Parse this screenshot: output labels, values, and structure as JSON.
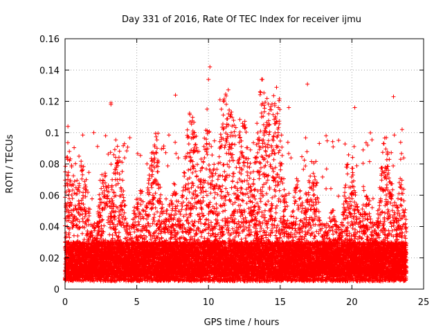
{
  "chart_data": {
    "type": "scatter",
    "title": "Day 331 of 2016, Rate Of TEC Index for receiver ijmu",
    "xlabel": "GPS time / hours",
    "ylabel": "ROTI / TECUs",
    "xlim": [
      0,
      25
    ],
    "ylim": [
      0,
      0.16
    ],
    "grid": true,
    "marker": "+",
    "x_ticks": [
      0,
      5,
      10,
      15,
      20,
      25
    ],
    "x_tick_labels": [
      "0",
      "5",
      "10",
      "15",
      "20",
      "25"
    ],
    "y_ticks": [
      0,
      0.02,
      0.04,
      0.06,
      0.08,
      0.1,
      0.12,
      0.14,
      0.16
    ],
    "y_tick_labels": [
      "0",
      "0.02",
      "0.04",
      "0.06",
      "0.08",
      "0.1",
      "0.12",
      "0.14",
      "0.16"
    ],
    "series": [
      {
        "name": "ROTI",
        "color": "#ff0000",
        "x_range": [
          0.0,
          23.8
        ],
        "sample_interval_hours": 0.0083,
        "baseline_range": [
          0.005,
          0.03
        ],
        "notable_points": [
          {
            "x": 10.1,
            "y": 0.142
          },
          {
            "x": 10.0,
            "y": 0.134
          },
          {
            "x": 16.9,
            "y": 0.131
          },
          {
            "x": 7.7,
            "y": 0.124
          },
          {
            "x": 22.9,
            "y": 0.123
          },
          {
            "x": 10.8,
            "y": 0.121
          },
          {
            "x": 3.2,
            "y": 0.119
          },
          {
            "x": 3.2,
            "y": 0.118
          },
          {
            "x": 20.2,
            "y": 0.116
          },
          {
            "x": 15.6,
            "y": 0.116
          },
          {
            "x": 10.9,
            "y": 0.115
          },
          {
            "x": 9.9,
            "y": 0.115
          },
          {
            "x": 13.7,
            "y": 0.11
          },
          {
            "x": 0.2,
            "y": 0.104
          },
          {
            "x": 23.5,
            "y": 0.102
          },
          {
            "x": 2.0,
            "y": 0.1
          },
          {
            "x": 18.2,
            "y": 0.098
          },
          {
            "x": 21.1,
            "y": 0.092
          },
          {
            "x": 0.3,
            "y": 0.088
          },
          {
            "x": 23.4,
            "y": 0.083
          }
        ]
      }
    ]
  }
}
